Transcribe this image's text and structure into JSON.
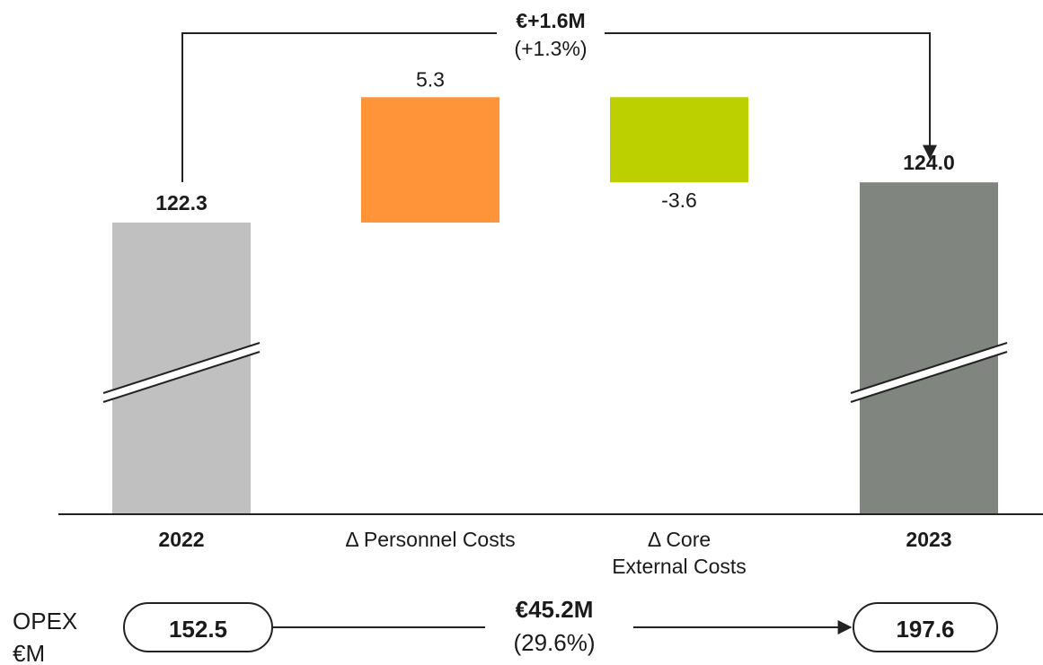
{
  "chart_data": {
    "type": "bar",
    "subtype": "waterfall",
    "categories": [
      "2022",
      "Δ Personnel Costs",
      "Δ Core\nExternal Costs",
      "2023"
    ],
    "values": [
      122.3,
      5.3,
      -3.6,
      124.0
    ],
    "value_labels": [
      "122.3",
      "5.3",
      "-3.6",
      "124.0"
    ],
    "bar_kinds": [
      "total",
      "delta",
      "delta",
      "total"
    ],
    "ylim": [
      100,
      130
    ],
    "axis_break": true,
    "colors": [
      "#c0c0c0",
      "#ff9538",
      "#bcd000",
      "#808580"
    ],
    "change_annotation": {
      "amount": "€+1.6M",
      "percent": "(+1.3%)"
    },
    "xlabel": "",
    "ylabel": ""
  },
  "opex": {
    "label_line1": "OPEX",
    "label_line2": "€M",
    "start_value": "152.5",
    "end_value": "197.6",
    "change_amount": "€45.2M",
    "change_percent": "(29.6%)"
  }
}
